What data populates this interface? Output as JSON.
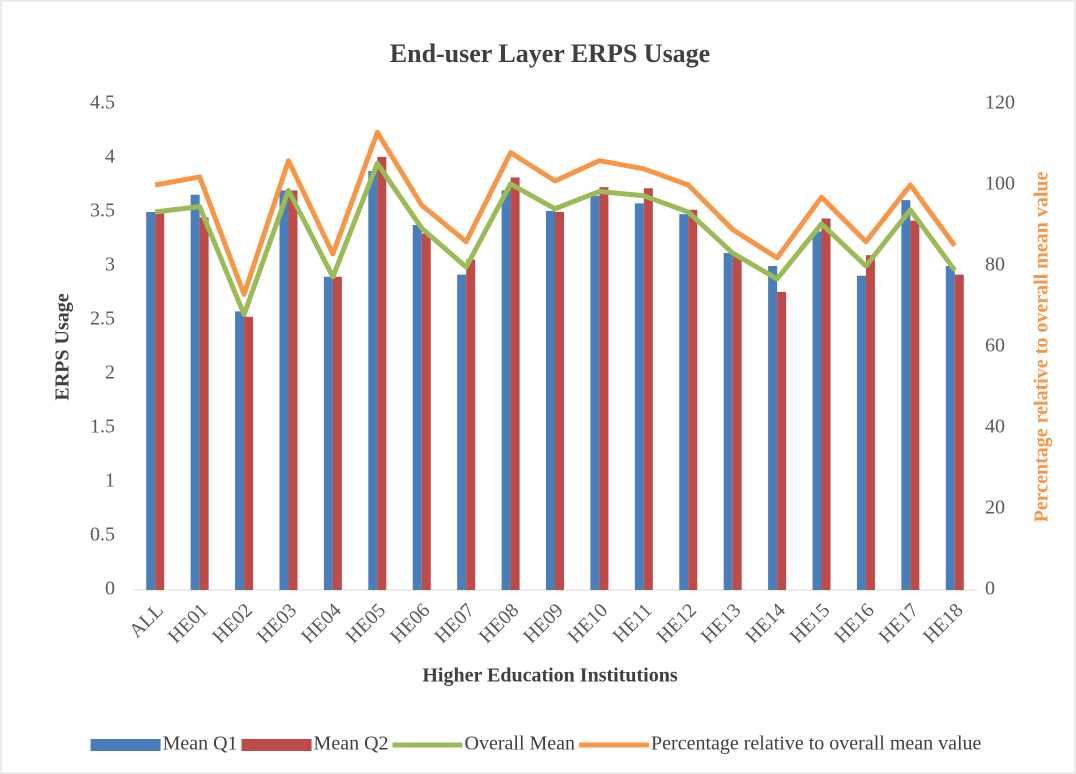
{
  "chart_data": {
    "type": "bar",
    "title": "End-user Layer ERPS Usage",
    "x_label": "Higher Education Institutions",
    "y_label": "ERPS Usage",
    "y2_label": "Percentage relative to overall mean value",
    "categories": [
      "ALL",
      "HE01",
      "HE02",
      "HE03",
      "HE04",
      "HE05",
      "HE06",
      "HE07",
      "HE08",
      "HE09",
      "HE10",
      "HE11",
      "HE12",
      "HE13",
      "HE14",
      "HE15",
      "HE16",
      "HE17",
      "HE18"
    ],
    "series": [
      {
        "name": "Mean Q1",
        "type": "bar",
        "color": "#4a7ebb",
        "values": [
          3.5,
          3.66,
          2.58,
          3.7,
          2.9,
          3.88,
          3.38,
          2.92,
          3.7,
          3.51,
          3.65,
          3.58,
          3.48,
          3.12,
          3.0,
          3.32,
          2.91,
          3.61,
          3.0
        ]
      },
      {
        "name": "Mean Q2",
        "type": "bar",
        "color": "#be4b48",
        "values": [
          3.5,
          3.45,
          2.53,
          3.7,
          2.9,
          4.01,
          3.3,
          3.06,
          3.82,
          3.5,
          3.73,
          3.72,
          3.52,
          3.1,
          2.76,
          3.44,
          3.1,
          3.42,
          2.92
        ]
      },
      {
        "name": "Overall Mean",
        "type": "line",
        "color": "#9bbb59",
        "values": [
          3.5,
          3.55,
          2.55,
          3.7,
          2.9,
          3.95,
          3.35,
          2.99,
          3.76,
          3.53,
          3.69,
          3.65,
          3.5,
          3.12,
          2.88,
          3.39,
          3.0,
          3.52,
          2.96
        ]
      },
      {
        "name": "Percentage relative to overall mean value",
        "type": "line",
        "axis": "y2",
        "color": "#f79646",
        "values": [
          100,
          102,
          73,
          106,
          83,
          113,
          95,
          86,
          108,
          101,
          106,
          104,
          100,
          89,
          82,
          97,
          86,
          100,
          85
        ]
      }
    ],
    "ylim": [
      0,
      4.5
    ],
    "yticks": [
      0,
      0.5,
      1,
      1.5,
      2,
      2.5,
      3,
      3.5,
      4,
      4.5
    ],
    "y2lim": [
      0,
      120
    ],
    "y2ticks": [
      0,
      20,
      40,
      60,
      80,
      100,
      120
    ],
    "y2_label_color": "#f79646",
    "legend": "bottom"
  }
}
